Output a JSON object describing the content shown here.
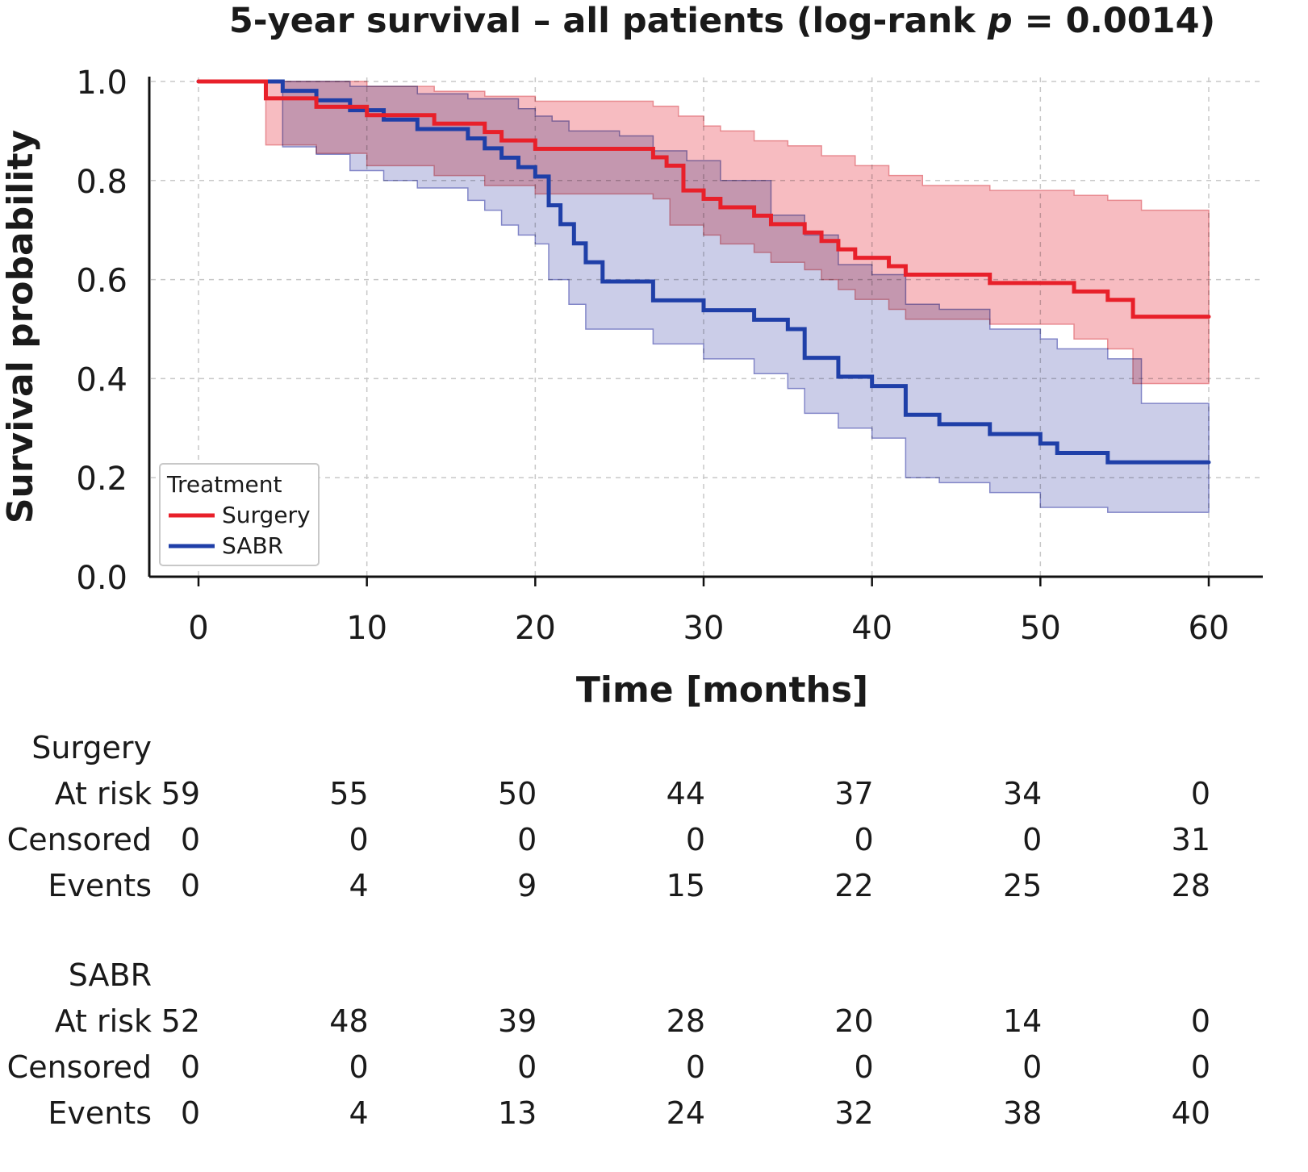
{
  "chart_data": {
    "type": "line",
    "subtype": "kaplan-meier",
    "title": "5-year survival – all patients (log-rank p = 0.0014)",
    "title_parts": {
      "prefix": "5-year survival – all patients (log-rank ",
      "italic": "p",
      "suffix": " = 0.0014)"
    },
    "xlabel": "Time [months]",
    "ylabel": "Survival probability",
    "xlim": [
      0,
      60
    ],
    "ylim": [
      0,
      1
    ],
    "xticks": [
      0,
      10,
      20,
      30,
      40,
      50,
      60
    ],
    "xtick_labels": [
      "0",
      "10",
      "20",
      "30",
      "40",
      "50",
      "60"
    ],
    "yticks": [
      0,
      0.2,
      0.4,
      0.6,
      0.8,
      1.0
    ],
    "ytick_labels": [
      "0.0",
      "0.2",
      "0.4",
      "0.6",
      "0.8",
      "1.0"
    ],
    "grid": true,
    "legend": {
      "title": "Treatment",
      "position": "bottom-left",
      "entries": [
        "Surgery",
        "SABR"
      ]
    },
    "series": [
      {
        "name": "Surgery",
        "color": "#e8202a",
        "band_color": "#f4a0a6",
        "steps": [
          [
            0,
            1.0
          ],
          [
            4,
            0.966
          ],
          [
            7,
            0.949
          ],
          [
            10,
            0.932
          ],
          [
            14,
            0.915
          ],
          [
            17,
            0.898
          ],
          [
            18,
            0.881
          ],
          [
            20,
            0.864
          ],
          [
            27,
            0.847
          ],
          [
            27.8,
            0.83
          ],
          [
            28.8,
            0.78
          ],
          [
            30,
            0.763
          ],
          [
            31,
            0.746
          ],
          [
            33,
            0.729
          ],
          [
            34,
            0.712
          ],
          [
            36,
            0.695
          ],
          [
            37,
            0.678
          ],
          [
            38,
            0.661
          ],
          [
            39,
            0.644
          ],
          [
            41,
            0.627
          ],
          [
            42,
            0.61
          ],
          [
            47,
            0.593
          ],
          [
            52,
            0.576
          ],
          [
            54,
            0.559
          ],
          [
            55.5,
            0.525
          ],
          [
            60,
            0.525
          ]
        ],
        "upper": [
          [
            4,
            1.0
          ],
          [
            10,
            0.99
          ],
          [
            14,
            0.98
          ],
          [
            17,
            0.97
          ],
          [
            20,
            0.96
          ],
          [
            27,
            0.95
          ],
          [
            28.5,
            0.93
          ],
          [
            30,
            0.91
          ],
          [
            31,
            0.9
          ],
          [
            33,
            0.88
          ],
          [
            35,
            0.87
          ],
          [
            37,
            0.85
          ],
          [
            39,
            0.83
          ],
          [
            41,
            0.81
          ],
          [
            43,
            0.79
          ],
          [
            47,
            0.78
          ],
          [
            52,
            0.77
          ],
          [
            54,
            0.76
          ],
          [
            56,
            0.74
          ],
          [
            60,
            0.74
          ]
        ],
        "lower": [
          [
            4,
            0.872
          ],
          [
            7,
            0.855
          ],
          [
            10,
            0.83
          ],
          [
            14,
            0.81
          ],
          [
            17,
            0.79
          ],
          [
            20,
            0.773
          ],
          [
            27,
            0.763
          ],
          [
            28,
            0.71
          ],
          [
            30,
            0.69
          ],
          [
            31,
            0.672
          ],
          [
            33,
            0.655
          ],
          [
            34,
            0.635
          ],
          [
            36,
            0.62
          ],
          [
            37,
            0.6
          ],
          [
            38,
            0.58
          ],
          [
            39,
            0.56
          ],
          [
            41,
            0.54
          ],
          [
            42,
            0.52
          ],
          [
            47,
            0.51
          ],
          [
            52,
            0.48
          ],
          [
            54,
            0.46
          ],
          [
            55.5,
            0.39
          ],
          [
            60,
            0.39
          ]
        ]
      },
      {
        "name": "SABR",
        "color": "#1f3fa8",
        "band_color": "#a9acd8",
        "steps": [
          [
            0,
            1.0
          ],
          [
            5,
            0.981
          ],
          [
            7,
            0.962
          ],
          [
            9,
            0.942
          ],
          [
            11,
            0.923
          ],
          [
            13,
            0.904
          ],
          [
            16,
            0.885
          ],
          [
            17,
            0.865
          ],
          [
            18,
            0.846
          ],
          [
            19,
            0.827
          ],
          [
            20,
            0.808
          ],
          [
            20.8,
            0.75
          ],
          [
            21.5,
            0.712
          ],
          [
            22.3,
            0.673
          ],
          [
            23,
            0.635
          ],
          [
            24,
            0.596
          ],
          [
            27,
            0.558
          ],
          [
            30,
            0.538
          ],
          [
            33,
            0.519
          ],
          [
            35,
            0.5
          ],
          [
            36,
            0.442
          ],
          [
            38,
            0.404
          ],
          [
            40,
            0.385
          ],
          [
            42,
            0.327
          ],
          [
            44,
            0.308
          ],
          [
            47,
            0.288
          ],
          [
            50,
            0.269
          ],
          [
            51,
            0.25
          ],
          [
            54,
            0.231
          ],
          [
            60,
            0.231
          ]
        ],
        "upper": [
          [
            5,
            1.0
          ],
          [
            9,
            0.99
          ],
          [
            13,
            0.975
          ],
          [
            16,
            0.965
          ],
          [
            19,
            0.945
          ],
          [
            20,
            0.93
          ],
          [
            21,
            0.92
          ],
          [
            22,
            0.9
          ],
          [
            25,
            0.89
          ],
          [
            27,
            0.86
          ],
          [
            29,
            0.84
          ],
          [
            31,
            0.8
          ],
          [
            34,
            0.73
          ],
          [
            36,
            0.69
          ],
          [
            38,
            0.63
          ],
          [
            40,
            0.61
          ],
          [
            42,
            0.55
          ],
          [
            44,
            0.54
          ],
          [
            47,
            0.5
          ],
          [
            50,
            0.48
          ],
          [
            51,
            0.46
          ],
          [
            54,
            0.44
          ],
          [
            56,
            0.35
          ],
          [
            60,
            0.35
          ]
        ],
        "lower": [
          [
            5,
            0.868
          ],
          [
            7,
            0.853
          ],
          [
            9,
            0.82
          ],
          [
            11,
            0.8
          ],
          [
            13,
            0.785
          ],
          [
            16,
            0.76
          ],
          [
            17,
            0.74
          ],
          [
            18,
            0.71
          ],
          [
            19,
            0.69
          ],
          [
            20,
            0.672
          ],
          [
            20.8,
            0.6
          ],
          [
            22,
            0.55
          ],
          [
            23,
            0.5
          ],
          [
            27,
            0.47
          ],
          [
            30,
            0.44
          ],
          [
            33,
            0.41
          ],
          [
            35,
            0.38
          ],
          [
            36,
            0.33
          ],
          [
            38,
            0.3
          ],
          [
            40,
            0.28
          ],
          [
            42,
            0.2
          ],
          [
            44,
            0.19
          ],
          [
            47,
            0.17
          ],
          [
            50,
            0.14
          ],
          [
            54,
            0.13
          ],
          [
            60,
            0.13
          ]
        ]
      }
    ],
    "risk_table": {
      "time_points": [
        0,
        10,
        20,
        30,
        40,
        50,
        60
      ],
      "groups": [
        {
          "name": "Surgery",
          "rows": [
            {
              "label": "At risk",
              "values": [
                59,
                55,
                50,
                44,
                37,
                34,
                0
              ]
            },
            {
              "label": "Censored",
              "values": [
                0,
                0,
                0,
                0,
                0,
                0,
                31
              ]
            },
            {
              "label": "Events",
              "values": [
                0,
                4,
                9,
                15,
                22,
                25,
                28
              ]
            }
          ]
        },
        {
          "name": "SABR",
          "rows": [
            {
              "label": "At risk",
              "values": [
                52,
                48,
                39,
                28,
                20,
                14,
                0
              ]
            },
            {
              "label": "Censored",
              "values": [
                0,
                0,
                0,
                0,
                0,
                0,
                0
              ]
            },
            {
              "label": "Events",
              "values": [
                0,
                4,
                13,
                24,
                32,
                38,
                40
              ]
            }
          ]
        }
      ]
    }
  }
}
